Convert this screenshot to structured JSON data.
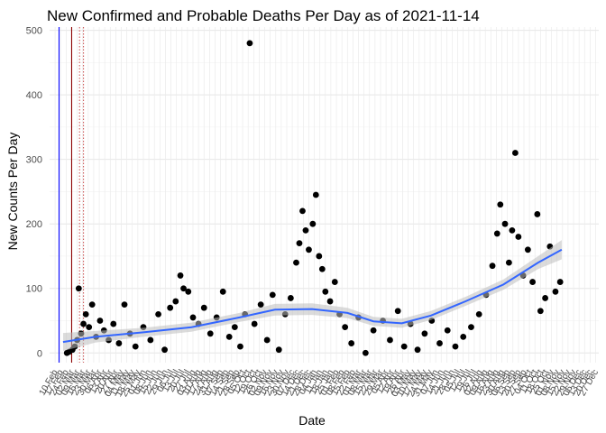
{
  "chart_data": {
    "type": "scatter",
    "title": "New Confirmed and Probable Deaths Per Day as of 2021-11-14",
    "xlabel": "Date",
    "ylabel": "New Counts Per Day",
    "ylim": [
      -15,
      505
    ],
    "yticks": [
      0,
      100,
      200,
      300,
      400,
      500
    ],
    "xlim": [
      "2020-02-03",
      "2021-12-31"
    ],
    "x_tick_interval_days": 7,
    "x_tick_label_format": "DD Mon",
    "grid": true,
    "point_color": "#000000",
    "smooth_color": "#3366ff",
    "band_color": "#bdbdbd",
    "reference_lines": [
      {
        "date": "2020-02-15",
        "color": "#0000ff",
        "style": "solid"
      },
      {
        "date": "2020-03-02",
        "color": "#8b0000",
        "style": "solid"
      },
      {
        "date": "2020-03-12",
        "color": "#cd5c5c",
        "style": "dotted"
      },
      {
        "date": "2020-03-17",
        "color": "#cd5c5c",
        "style": "dotted"
      }
    ],
    "smooth": [
      {
        "x": "2020-02-20",
        "y": 17
      },
      {
        "x": "2020-04-01",
        "y": 25
      },
      {
        "x": "2020-06-01",
        "y": 32
      },
      {
        "x": "2020-08-01",
        "y": 40
      },
      {
        "x": "2020-10-01",
        "y": 55
      },
      {
        "x": "2020-11-15",
        "y": 67
      },
      {
        "x": "2021-01-01",
        "y": 68
      },
      {
        "x": "2021-02-15",
        "y": 62
      },
      {
        "x": "2021-03-20",
        "y": 49
      },
      {
        "x": "2021-04-25",
        "y": 46
      },
      {
        "x": "2021-06-01",
        "y": 58
      },
      {
        "x": "2021-07-15",
        "y": 80
      },
      {
        "x": "2021-09-01",
        "y": 106
      },
      {
        "x": "2021-10-15",
        "y": 140
      },
      {
        "x": "2021-11-14",
        "y": 160
      }
    ],
    "band_half_width": [
      14,
      9,
      7,
      7,
      7,
      9,
      9,
      8,
      7,
      7,
      7,
      7,
      8,
      10,
      15
    ],
    "points": [
      {
        "x": "2020-02-25",
        "y": 0
      },
      {
        "x": "2020-02-28",
        "y": 2
      },
      {
        "x": "2020-03-03",
        "y": 5
      },
      {
        "x": "2020-03-06",
        "y": 10
      },
      {
        "x": "2020-03-09",
        "y": 20
      },
      {
        "x": "2020-03-11",
        "y": 100
      },
      {
        "x": "2020-03-14",
        "y": 30
      },
      {
        "x": "2020-03-17",
        "y": 45
      },
      {
        "x": "2020-03-20",
        "y": 60
      },
      {
        "x": "2020-03-24",
        "y": 40
      },
      {
        "x": "2020-03-28",
        "y": 75
      },
      {
        "x": "2020-04-02",
        "y": 25
      },
      {
        "x": "2020-04-07",
        "y": 50
      },
      {
        "x": "2020-04-12",
        "y": 35
      },
      {
        "x": "2020-04-18",
        "y": 20
      },
      {
        "x": "2020-04-24",
        "y": 45
      },
      {
        "x": "2020-05-01",
        "y": 15
      },
      {
        "x": "2020-05-08",
        "y": 75
      },
      {
        "x": "2020-05-15",
        "y": 30
      },
      {
        "x": "2020-05-22",
        "y": 10
      },
      {
        "x": "2020-06-01",
        "y": 40
      },
      {
        "x": "2020-06-10",
        "y": 20
      },
      {
        "x": "2020-06-20",
        "y": 60
      },
      {
        "x": "2020-06-28",
        "y": 5
      },
      {
        "x": "2020-07-05",
        "y": 70
      },
      {
        "x": "2020-07-12",
        "y": 80
      },
      {
        "x": "2020-07-18",
        "y": 120
      },
      {
        "x": "2020-07-22",
        "y": 100
      },
      {
        "x": "2020-07-28",
        "y": 95
      },
      {
        "x": "2020-08-03",
        "y": 55
      },
      {
        "x": "2020-08-10",
        "y": 45
      },
      {
        "x": "2020-08-17",
        "y": 70
      },
      {
        "x": "2020-08-25",
        "y": 30
      },
      {
        "x": "2020-09-02",
        "y": 55
      },
      {
        "x": "2020-09-10",
        "y": 95
      },
      {
        "x": "2020-09-18",
        "y": 25
      },
      {
        "x": "2020-09-25",
        "y": 40
      },
      {
        "x": "2020-10-02",
        "y": 10
      },
      {
        "x": "2020-10-08",
        "y": 60
      },
      {
        "x": "2020-10-14",
        "y": 480
      },
      {
        "x": "2020-10-20",
        "y": 45
      },
      {
        "x": "2020-10-28",
        "y": 75
      },
      {
        "x": "2020-11-05",
        "y": 20
      },
      {
        "x": "2020-11-12",
        "y": 90
      },
      {
        "x": "2020-11-20",
        "y": 5
      },
      {
        "x": "2020-11-28",
        "y": 60
      },
      {
        "x": "2020-12-05",
        "y": 85
      },
      {
        "x": "2020-12-12",
        "y": 140
      },
      {
        "x": "2020-12-16",
        "y": 170
      },
      {
        "x": "2020-12-20",
        "y": 220
      },
      {
        "x": "2020-12-24",
        "y": 190
      },
      {
        "x": "2020-12-28",
        "y": 160
      },
      {
        "x": "2021-01-02",
        "y": 200
      },
      {
        "x": "2021-01-06",
        "y": 245
      },
      {
        "x": "2021-01-10",
        "y": 150
      },
      {
        "x": "2021-01-14",
        "y": 130
      },
      {
        "x": "2021-01-18",
        "y": 95
      },
      {
        "x": "2021-01-24",
        "y": 80
      },
      {
        "x": "2021-01-30",
        "y": 110
      },
      {
        "x": "2021-02-05",
        "y": 60
      },
      {
        "x": "2021-02-12",
        "y": 40
      },
      {
        "x": "2021-02-20",
        "y": 15
      },
      {
        "x": "2021-03-01",
        "y": 55
      },
      {
        "x": "2021-03-10",
        "y": 0
      },
      {
        "x": "2021-03-20",
        "y": 35
      },
      {
        "x": "2021-04-01",
        "y": 50
      },
      {
        "x": "2021-04-10",
        "y": 20
      },
      {
        "x": "2021-04-20",
        "y": 65
      },
      {
        "x": "2021-04-28",
        "y": 10
      },
      {
        "x": "2021-05-06",
        "y": 45
      },
      {
        "x": "2021-05-15",
        "y": 5
      },
      {
        "x": "2021-05-24",
        "y": 30
      },
      {
        "x": "2021-06-02",
        "y": 50
      },
      {
        "x": "2021-06-12",
        "y": 15
      },
      {
        "x": "2021-06-22",
        "y": 35
      },
      {
        "x": "2021-07-02",
        "y": 10
      },
      {
        "x": "2021-07-12",
        "y": 25
      },
      {
        "x": "2021-07-22",
        "y": 40
      },
      {
        "x": "2021-08-01",
        "y": 60
      },
      {
        "x": "2021-08-10",
        "y": 90
      },
      {
        "x": "2021-08-18",
        "y": 135
      },
      {
        "x": "2021-08-24",
        "y": 185
      },
      {
        "x": "2021-08-28",
        "y": 230
      },
      {
        "x": "2021-09-03",
        "y": 200
      },
      {
        "x": "2021-09-08",
        "y": 140
      },
      {
        "x": "2021-09-12",
        "y": 190
      },
      {
        "x": "2021-09-16",
        "y": 310
      },
      {
        "x": "2021-09-20",
        "y": 180
      },
      {
        "x": "2021-09-26",
        "y": 120
      },
      {
        "x": "2021-10-02",
        "y": 160
      },
      {
        "x": "2021-10-08",
        "y": 110
      },
      {
        "x": "2021-10-14",
        "y": 215
      },
      {
        "x": "2021-10-18",
        "y": 65
      },
      {
        "x": "2021-10-24",
        "y": 85
      },
      {
        "x": "2021-10-30",
        "y": 165
      },
      {
        "x": "2021-11-06",
        "y": 95
      },
      {
        "x": "2021-11-12",
        "y": 110
      }
    ]
  }
}
